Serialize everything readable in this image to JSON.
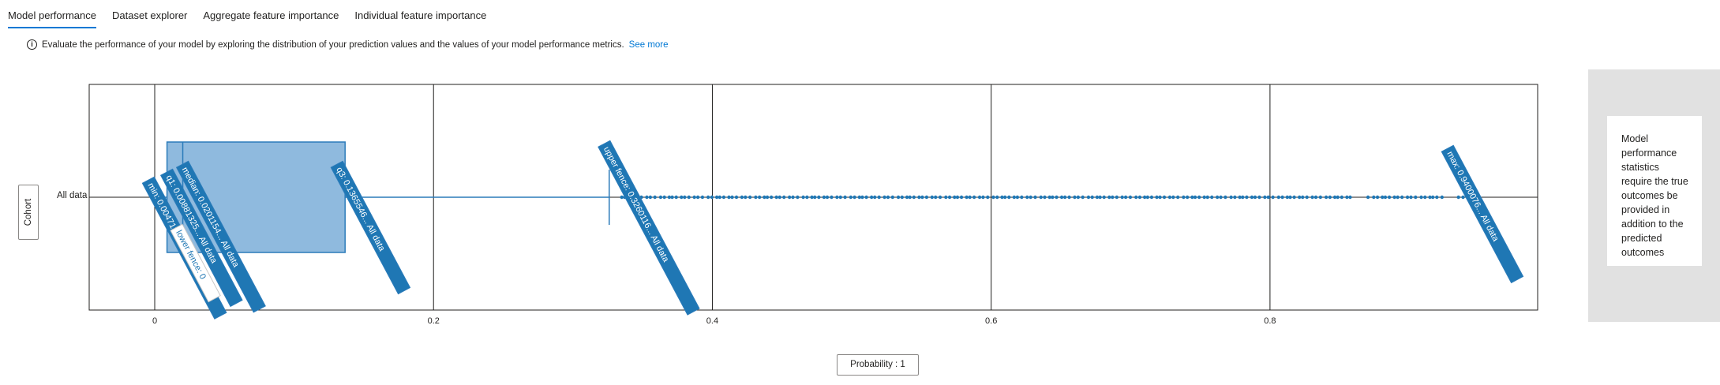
{
  "tabs": [
    {
      "label": "Model performance",
      "active": true
    },
    {
      "label": "Dataset explorer",
      "active": false
    },
    {
      "label": "Aggregate feature importance",
      "active": false
    },
    {
      "label": "Individual feature importance",
      "active": false
    }
  ],
  "info": {
    "icon": "info-icon",
    "text": "Evaluate the performance of your model by exploring the distribution of your prediction values and the values of your model performance metrics.",
    "link": "See more"
  },
  "cohort_button": "Cohort",
  "x_axis_button": "Probability : 1",
  "side_panel": {
    "message": "Model performance statistics require the true outcomes be provided in addition to the predicted outcomes"
  },
  "colors": {
    "accent": "#0078d4",
    "box_fill": "#8fbade",
    "box_stroke": "#2b7bba",
    "label_fill": "#1f77b4"
  },
  "chart_data": {
    "type": "box",
    "categories": [
      "All data"
    ],
    "x_ticks": [
      "0",
      "0.2",
      "0.4",
      "0.6",
      "0.8"
    ],
    "xlim": [
      -0.047,
      0.992
    ],
    "grid": true,
    "box": {
      "min": 0.004713164,
      "q1": 0.00881325,
      "median": 0.0201154,
      "q3": 0.1365546,
      "upper_fence": 0.3260116,
      "max": 0.9400076,
      "lower_fence": 0
    },
    "annotations": [
      {
        "text": "min: 0.00471316...",
        "series": "All data",
        "value": 0.004713164
      },
      {
        "text": "q1: 0.00881325...",
        "series": "All data",
        "value": 0.00881325
      },
      {
        "text": "median: 0.0201154...",
        "series": "All data",
        "value": 0.0201154
      },
      {
        "text": "lower fence: 0",
        "series": "",
        "value": 0
      },
      {
        "text": "q3: 0.1365546...",
        "series": "All data",
        "value": 0.1365546
      },
      {
        "text": "upper fence: 0.3260116...",
        "series": "All data",
        "value": 0.3260116
      },
      {
        "text": "max: 0.9400076...",
        "series": "All data",
        "value": 0.9400076
      }
    ],
    "outliers_range": [
      0.335,
      0.94
    ]
  }
}
